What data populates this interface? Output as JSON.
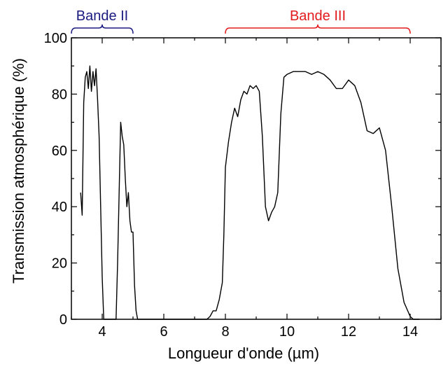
{
  "chart_data": {
    "type": "line",
    "xlabel": "Longueur d'onde (µm)",
    "ylabel": "Transmission atmosphérique (%)",
    "xlim": [
      3,
      15
    ],
    "ylim": [
      0,
      100
    ],
    "x_ticks": [
      4,
      6,
      8,
      10,
      12,
      14
    ],
    "x_tick_labels": [
      "4",
      "6",
      "8",
      "10",
      "12",
      "14"
    ],
    "y_ticks": [
      0,
      20,
      40,
      60,
      80,
      100
    ],
    "y_tick_labels": [
      "0",
      "20",
      "40",
      "60",
      "80",
      "100"
    ],
    "grid": false,
    "line_color": "#000000",
    "bands": [
      {
        "label": "Bande II",
        "x_start": 3,
        "x_end": 5,
        "color": "#1a1a80"
      },
      {
        "label": "Bande III",
        "x_start": 8,
        "x_end": 14,
        "color": "#e31a1c"
      }
    ],
    "series": [
      {
        "x": [
          3.3,
          3.35,
          3.4,
          3.45,
          3.5,
          3.55,
          3.6,
          3.65,
          3.7,
          3.75,
          3.8,
          3.85,
          3.9,
          3.95,
          4.0,
          4.05,
          4.1,
          4.15,
          4.2,
          4.45,
          4.5,
          4.55,
          4.6,
          4.65,
          4.7,
          4.75,
          4.8,
          4.85,
          4.9,
          4.95,
          5.0,
          5.05,
          5.1,
          5.15,
          5.2,
          5.3,
          5.5,
          7.4,
          7.5,
          7.6,
          7.7,
          7.8,
          7.9,
          7.95,
          8.0,
          8.1,
          8.2,
          8.3,
          8.4,
          8.5,
          8.6,
          8.7,
          8.8,
          8.9,
          9.0,
          9.1,
          9.2,
          9.3,
          9.4,
          9.5,
          9.6,
          9.7,
          9.8,
          9.9,
          10.0,
          10.2,
          10.4,
          10.6,
          10.8,
          11.0,
          11.2,
          11.4,
          11.6,
          11.8,
          12.0,
          12.2,
          12.4,
          12.6,
          12.8,
          13.0,
          13.2,
          13.4,
          13.6,
          13.8,
          14.0,
          14.1,
          14.3
        ],
        "values": [
          45,
          37,
          77,
          86,
          88,
          82,
          90,
          81,
          88,
          83,
          89,
          78,
          65,
          40,
          15,
          0,
          0,
          0,
          0,
          0,
          20,
          45,
          70,
          65,
          62,
          50,
          40,
          45,
          35,
          31,
          31,
          12,
          3,
          0,
          0,
          0,
          0,
          0,
          1,
          3,
          3,
          7,
          13,
          30,
          54,
          63,
          70,
          75,
          72,
          78,
          81,
          80,
          83,
          82,
          83,
          81,
          65,
          40,
          35,
          38,
          40,
          45,
          73,
          86,
          87,
          88,
          88,
          88,
          87,
          88,
          87,
          85,
          82,
          82,
          85,
          83,
          77,
          67,
          66,
          68,
          60,
          40,
          18,
          6,
          1,
          0,
          0
        ]
      }
    ]
  }
}
